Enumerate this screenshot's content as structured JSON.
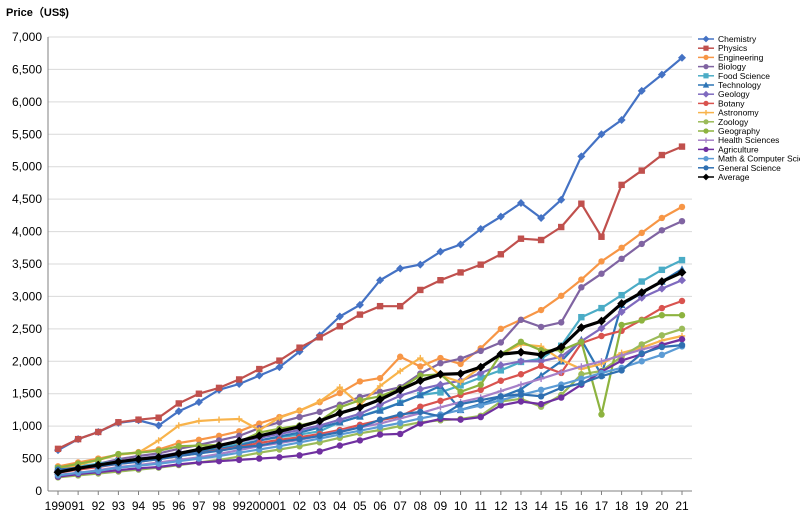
{
  "chart_data": {
    "type": "line",
    "title": "",
    "xlabel": "",
    "ylabel": "Price（US$)",
    "ylim": [
      0,
      7000
    ],
    "ytick_step": 500,
    "grid": "horizontal",
    "legend_position": "right",
    "x": [
      "1990",
      "91",
      "92",
      "93",
      "94",
      "95",
      "96",
      "97",
      "98",
      "99",
      "2000",
      "01",
      "02",
      "03",
      "04",
      "05",
      "06",
      "07",
      "08",
      "09",
      "10",
      "11",
      "12",
      "13",
      "14",
      "15",
      "16",
      "17",
      "18",
      "19",
      "20",
      "21"
    ],
    "series": [
      {
        "name": "Chemistry",
        "color": "#4472C4",
        "marker": "diamond",
        "values": [
          630,
          800,
          910,
          1050,
          1090,
          1010,
          1230,
          1370,
          1560,
          1650,
          1780,
          1910,
          2150,
          2400,
          2690,
          2870,
          3250,
          3430,
          3490,
          3690,
          3800,
          4040,
          4230,
          4440,
          4210,
          4490,
          5160,
          5500,
          5720,
          6170,
          6420,
          6680
        ]
      },
      {
        "name": "Physics",
        "color": "#C0504D",
        "marker": "square",
        "values": [
          650,
          800,
          910,
          1060,
          1100,
          1130,
          1350,
          1500,
          1590,
          1720,
          1880,
          2010,
          2210,
          2370,
          2540,
          2720,
          2850,
          2850,
          3100,
          3250,
          3370,
          3490,
          3650,
          3890,
          3870,
          4070,
          4430,
          3920,
          4720,
          4940,
          5180,
          5310
        ]
      },
      {
        "name": "Engineering",
        "color": "#F79646",
        "marker": "circle",
        "values": [
          380,
          440,
          500,
          560,
          600,
          640,
          740,
          790,
          850,
          920,
          1040,
          1140,
          1240,
          1370,
          1510,
          1690,
          1740,
          2070,
          1920,
          2050,
          1960,
          2200,
          2500,
          2640,
          2790,
          3010,
          3260,
          3540,
          3750,
          3980,
          4210,
          4380
        ]
      },
      {
        "name": "Biology",
        "color": "#8064A2",
        "marker": "circle",
        "values": [
          300,
          360,
          420,
          490,
          540,
          580,
          650,
          710,
          780,
          850,
          970,
          1060,
          1140,
          1220,
          1330,
          1450,
          1530,
          1600,
          1810,
          1970,
          2040,
          2160,
          2290,
          2640,
          2530,
          2600,
          3140,
          3350,
          3580,
          3810,
          4020,
          4160
        ]
      },
      {
        "name": "Food Science",
        "color": "#4BACC6",
        "marker": "square",
        "values": [
          350,
          380,
          420,
          460,
          480,
          520,
          570,
          620,
          670,
          720,
          780,
          830,
          870,
          920,
          1060,
          1150,
          1250,
          1360,
          1480,
          1520,
          1630,
          1750,
          1860,
          1990,
          2040,
          2240,
          2680,
          2820,
          3020,
          3230,
          3410,
          3560
        ]
      },
      {
        "name": "Technology",
        "color": "#2E75B6",
        "marker": "triangle",
        "values": [
          300,
          340,
          380,
          430,
          460,
          500,
          550,
          600,
          650,
          700,
          780,
          840,
          900,
          980,
          1060,
          1150,
          1240,
          1360,
          1480,
          1620,
          1250,
          1340,
          1450,
          1570,
          1780,
          2000,
          2330,
          1790,
          2870,
          3050,
          3230,
          3420
        ]
      },
      {
        "name": "Geology",
        "color": "#7F6ABF",
        "marker": "diamond",
        "values": [
          310,
          360,
          400,
          460,
          500,
          540,
          590,
          640,
          700,
          760,
          820,
          880,
          940,
          1010,
          1100,
          1190,
          1330,
          1470,
          1570,
          1640,
          1700,
          1820,
          1940,
          2000,
          2000,
          2070,
          2310,
          2510,
          2760,
          2980,
          3120,
          3250
        ]
      },
      {
        "name": "Botany",
        "color": "#D9534F",
        "marker": "circle",
        "values": [
          280,
          330,
          370,
          420,
          450,
          490,
          540,
          580,
          630,
          680,
          740,
          790,
          830,
          880,
          940,
          1020,
          1090,
          1150,
          1300,
          1390,
          1480,
          1560,
          1700,
          1800,
          1930,
          1820,
          2280,
          2390,
          2470,
          2640,
          2820,
          2930
        ]
      },
      {
        "name": "Astronomy",
        "color": "#F8B34B",
        "marker": "plus",
        "values": [
          330,
          400,
          480,
          560,
          590,
          780,
          1010,
          1080,
          1100,
          1110,
          940,
          1130,
          1240,
          1380,
          1600,
          1330,
          1620,
          1850,
          2050,
          1780,
          1680,
          1910,
          2110,
          2260,
          2230,
          2020,
          1880,
          1960,
          2130,
          2210,
          2320,
          2390
        ]
      },
      {
        "name": "Zoology",
        "color": "#9BBB59",
        "marker": "circle",
        "values": [
          210,
          240,
          270,
          300,
          330,
          360,
          400,
          440,
          480,
          530,
          590,
          640,
          690,
          750,
          820,
          890,
          940,
          1000,
          1060,
          1090,
          1110,
          1160,
          1380,
          1420,
          1300,
          1480,
          1800,
          1850,
          2070,
          2260,
          2400,
          2500
        ]
      },
      {
        "name": "Geography",
        "color": "#8DB33F",
        "marker": "circle",
        "values": [
          360,
          420,
          480,
          570,
          590,
          620,
          690,
          700,
          710,
          760,
          900,
          960,
          1010,
          1080,
          1290,
          1400,
          1460,
          1580,
          1780,
          1800,
          1530,
          1640,
          2110,
          2300,
          2170,
          2170,
          2300,
          1180,
          2560,
          2630,
          2710,
          2710
        ]
      },
      {
        "name": "Health Sciences",
        "color": "#A680C8",
        "marker": "plus",
        "values": [
          250,
          280,
          320,
          370,
          400,
          440,
          480,
          520,
          570,
          630,
          690,
          740,
          790,
          850,
          920,
          980,
          1040,
          1120,
          1200,
          1290,
          1370,
          1440,
          1540,
          1640,
          1730,
          1830,
          1920,
          2000,
          2090,
          2180,
          2260,
          2330
        ]
      },
      {
        "name": "Agriculture",
        "color": "#7030A0",
        "marker": "circle",
        "values": [
          220,
          260,
          290,
          320,
          350,
          370,
          410,
          440,
          460,
          480,
          500,
          520,
          550,
          610,
          700,
          780,
          870,
          880,
          1040,
          1110,
          1100,
          1140,
          1320,
          1380,
          1340,
          1440,
          1640,
          1840,
          2010,
          2110,
          2250,
          2340
        ]
      },
      {
        "name": "Math & Computer Science",
        "color": "#5B9BD5",
        "marker": "circle",
        "values": [
          240,
          280,
          310,
          360,
          390,
          420,
          460,
          500,
          540,
          590,
          640,
          690,
          750,
          810,
          870,
          930,
          990,
          1050,
          1120,
          1180,
          1250,
          1320,
          1400,
          1480,
          1560,
          1640,
          1730,
          1820,
          1900,
          2000,
          2100,
          2230
        ]
      },
      {
        "name": "General Science",
        "color": "#2F6FB1",
        "marker": "circle",
        "values": [
          330,
          360,
          380,
          420,
          450,
          490,
          540,
          580,
          620,
          670,
          700,
          760,
          800,
          850,
          910,
          980,
          1100,
          1180,
          1220,
          1150,
          1340,
          1400,
          1460,
          1490,
          1460,
          1590,
          1660,
          1770,
          1860,
          2120,
          2220,
          2250
        ]
      },
      {
        "name": "Average",
        "color": "#000000",
        "marker": "diamond",
        "values": [
          290,
          350,
          400,
          450,
          490,
          520,
          580,
          640,
          700,
          770,
          850,
          920,
          990,
          1080,
          1200,
          1290,
          1410,
          1560,
          1700,
          1800,
          1810,
          1910,
          2110,
          2140,
          2100,
          2220,
          2520,
          2620,
          2890,
          3060,
          3230,
          3370
        ]
      }
    ]
  }
}
